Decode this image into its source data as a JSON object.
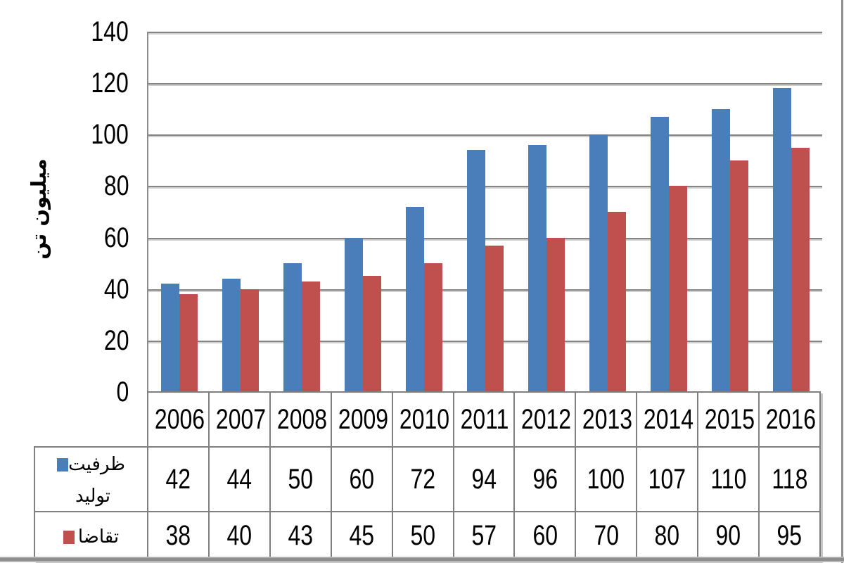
{
  "chart_data": {
    "type": "bar",
    "title": "",
    "xlabel": "",
    "ylabel": "ميليون تن",
    "ylim": [
      0,
      140
    ],
    "yticks": [
      140,
      120,
      100,
      80,
      60,
      40,
      20,
      0
    ],
    "grid": true,
    "legend_position": "table-rows-left",
    "data_table_shown": true,
    "categories": [
      "2006",
      "2007",
      "2008",
      "2009",
      "2010",
      "2011",
      "2012",
      "2013",
      "2014",
      "2015",
      "2016"
    ],
    "series": [
      {
        "name": "ظرفيت توليد",
        "id": "capacity",
        "color": "#4A7EBB",
        "values": [
          42,
          44,
          50,
          60,
          72,
          94,
          96,
          100,
          107,
          110,
          118
        ]
      },
      {
        "name": "تقاضا",
        "id": "demand",
        "color": "#C0504D",
        "values": [
          38,
          40,
          43,
          45,
          50,
          57,
          60,
          70,
          80,
          90,
          95
        ]
      }
    ],
    "colors": {
      "gridline": "#858585",
      "table_border": "#7f7f7f",
      "frame": "#8f8f8f"
    }
  }
}
